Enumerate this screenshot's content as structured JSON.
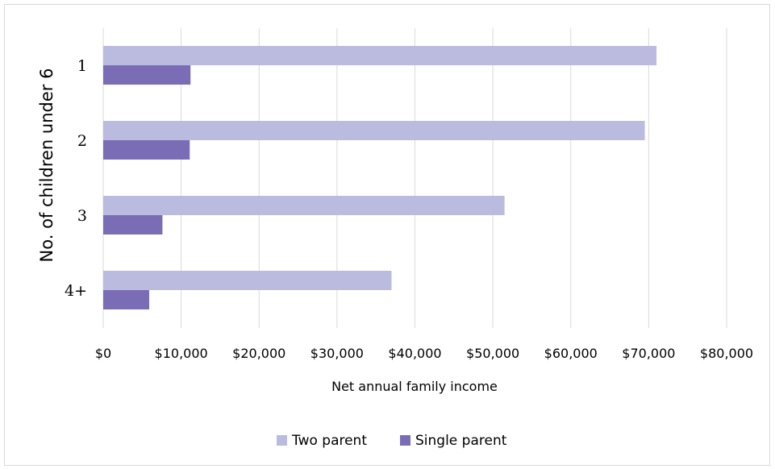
{
  "chart_data": {
    "type": "bar",
    "orientation": "horizontal",
    "categories": [
      "1",
      "2",
      "3",
      "4+"
    ],
    "series": [
      {
        "name": "Two parent",
        "values": [
          71000,
          69500,
          51500,
          37000
        ],
        "color": "#babbdf"
      },
      {
        "name": "Single parent",
        "values": [
          11200,
          11100,
          7600,
          5900
        ],
        "color": "#7b6db5"
      }
    ],
    "xlabel": "Net annual family income",
    "ylabel": "No. of children under 6",
    "xlim": [
      0,
      80000
    ],
    "x_ticks": [
      "$0",
      "$10,000",
      "$20,000",
      "$30,000",
      "$40,000",
      "$50,000",
      "$60,000",
      "$70,000",
      "$80,000"
    ],
    "grid": true,
    "legend_position": "bottom",
    "gridline_color": "#d9d9d9"
  }
}
